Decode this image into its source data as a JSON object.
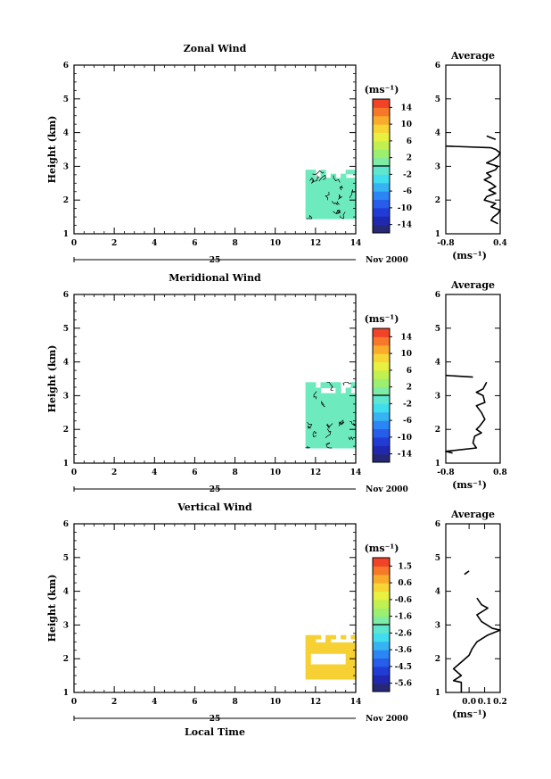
{
  "figure": {
    "date_label": "Nov 2000",
    "day_label": "25",
    "x_axis_label": "Local Time",
    "y_axis_label": "Height (km)",
    "unit_label": "(ms⁻¹)",
    "average_title": "Average"
  },
  "chart_data": [
    {
      "type": "heatmap",
      "title": "Zonal Wind",
      "xlabel": "",
      "ylabel": "Height (km)",
      "xlim": [
        0,
        14
      ],
      "ylim": [
        1,
        6
      ],
      "xticks": [
        0,
        2,
        4,
        6,
        8,
        10,
        12,
        14
      ],
      "yticks": [
        1,
        2,
        3,
        4,
        5,
        6
      ],
      "colorbar": {
        "label": "(ms⁻¹)",
        "ticks": [
          "14",
          "10",
          "6",
          "2",
          "-2",
          "-6",
          "-10",
          "-14"
        ],
        "range": [
          -16,
          16
        ]
      },
      "data_region": {
        "x": [
          11.5,
          14
        ],
        "y": [
          1.45,
          2.9
        ],
        "approx_value": 0
      },
      "average_profile": {
        "title": "Average",
        "xlabel": "(ms⁻¹)",
        "xlim": [
          -0.8,
          0.4
        ],
        "xticks": [
          "-0.8",
          "0.4"
        ],
        "ylim": [
          1,
          6
        ],
        "segments": [
          [
            [
              0.1,
              3.9
            ],
            [
              0.3,
              3.8
            ]
          ],
          [
            [
              -0.8,
              3.6
            ],
            [
              0.2,
              3.55
            ],
            [
              0.3,
              3.5
            ],
            [
              0.4,
              3.4
            ],
            [
              0.35,
              3.3
            ],
            [
              0.25,
              3.2
            ],
            [
              0.1,
              3.1
            ],
            [
              0.35,
              3.0
            ],
            [
              0.3,
              2.9
            ],
            [
              0.1,
              2.8
            ],
            [
              0.2,
              2.7
            ],
            [
              0.05,
              2.6
            ],
            [
              0.2,
              2.5
            ],
            [
              0.3,
              2.4
            ],
            [
              0.15,
              2.3
            ],
            [
              0.3,
              2.2
            ],
            [
              0.1,
              2.1
            ],
            [
              0.05,
              2.0
            ],
            [
              0.3,
              1.9
            ],
            [
              0.2,
              1.8
            ],
            [
              0.4,
              1.7
            ],
            [
              0.35,
              1.6
            ],
            [
              0.25,
              1.5
            ],
            [
              0.2,
              1.4
            ],
            [
              0.35,
              1.3
            ]
          ]
        ]
      }
    },
    {
      "type": "heatmap",
      "title": "Meridional Wind",
      "xlabel": "",
      "ylabel": "Height (km)",
      "xlim": [
        0,
        14
      ],
      "ylim": [
        1,
        6
      ],
      "xticks": [
        0,
        2,
        4,
        6,
        8,
        10,
        12,
        14
      ],
      "yticks": [
        1,
        2,
        3,
        4,
        5,
        6
      ],
      "colorbar": {
        "label": "(ms⁻¹)",
        "ticks": [
          "14",
          "10",
          "6",
          "2",
          "-2",
          "-6",
          "-10",
          "-14"
        ],
        "range": [
          -16,
          16
        ]
      },
      "data_region": {
        "x": [
          11.5,
          14
        ],
        "y": [
          1.45,
          3.4
        ],
        "approx_value": 0
      },
      "average_profile": {
        "title": "Average",
        "xlabel": "(ms⁻¹)",
        "xlim": [
          -0.8,
          0.8
        ],
        "xticks": [
          "-0.8",
          "0.8"
        ],
        "ylim": [
          1,
          6
        ],
        "segments": [
          [
            [
              -0.8,
              3.6
            ],
            [
              0.0,
              3.55
            ]
          ],
          [
            [
              0.4,
              3.4
            ],
            [
              0.3,
              3.2
            ],
            [
              0.1,
              3.1
            ],
            [
              0.3,
              3.0
            ],
            [
              0.35,
              2.8
            ],
            [
              0.1,
              2.7
            ],
            [
              0.25,
              2.5
            ],
            [
              0.35,
              2.3
            ],
            [
              0.2,
              2.1
            ],
            [
              0.1,
              2.0
            ],
            [
              0.25,
              1.9
            ],
            [
              0.05,
              1.8
            ],
            [
              0.0,
              1.6
            ],
            [
              0.1,
              1.45
            ],
            [
              -0.8,
              1.35
            ],
            [
              -0.6,
              1.3
            ]
          ]
        ]
      }
    },
    {
      "type": "heatmap",
      "title": "Vertical Wind",
      "xlabel": "Local Time",
      "ylabel": "Height (km)",
      "xlim": [
        0,
        14
      ],
      "ylim": [
        1,
        6
      ],
      "xticks": [
        0,
        2,
        4,
        6,
        8,
        10,
        12,
        14
      ],
      "yticks": [
        1,
        2,
        3,
        4,
        5,
        6
      ],
      "colorbar": {
        "label": "(ms⁻¹)",
        "ticks": [
          "1.5",
          "0.6",
          "-0.6",
          "-1.6",
          "-2.6",
          "-3.6",
          "-4.5",
          "-5.6"
        ],
        "range": [
          -6,
          2
        ]
      },
      "data_region": {
        "x": [
          11.5,
          14
        ],
        "y": [
          1.4,
          2.7
        ],
        "approx_value": 0.3
      },
      "average_profile": {
        "title": "Average",
        "xlabel": "(ms⁻¹)",
        "xlim": [
          -0.15,
          0.2
        ],
        "xticks": [
          "0.0",
          "0.1",
          "0.2"
        ],
        "ylim": [
          1,
          6
        ],
        "segments": [
          [
            [
              -0.03,
              4.5
            ],
            [
              0.0,
              4.6
            ]
          ],
          [
            [
              0.05,
              3.8
            ],
            [
              0.08,
              3.6
            ],
            [
              0.12,
              3.5
            ],
            [
              0.05,
              3.3
            ],
            [
              0.08,
              3.1
            ],
            [
              0.15,
              2.9
            ],
            [
              0.2,
              2.85
            ],
            [
              0.12,
              2.7
            ],
            [
              0.05,
              2.5
            ],
            [
              0.02,
              2.3
            ],
            [
              0.0,
              2.1
            ],
            [
              -0.05,
              1.9
            ],
            [
              -0.1,
              1.7
            ],
            [
              -0.05,
              1.5
            ],
            [
              -0.1,
              1.35
            ],
            [
              -0.05,
              1.3
            ],
            [
              -0.05,
              1.0
            ]
          ]
        ]
      }
    }
  ]
}
